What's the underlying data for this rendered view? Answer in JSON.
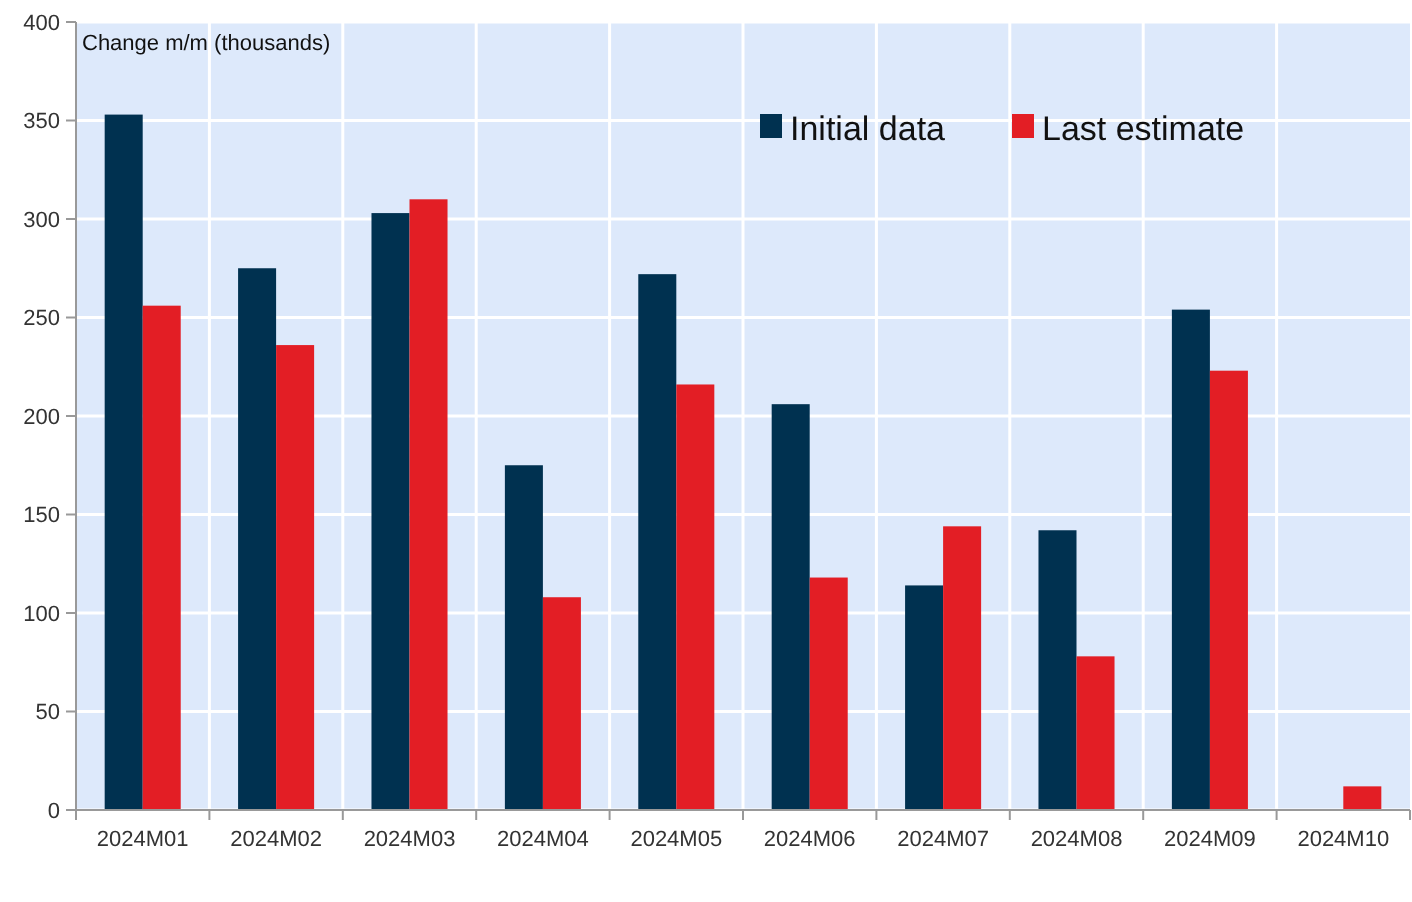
{
  "chart_data": {
    "type": "bar",
    "ylabel": "Change m/m (thousands)",
    "categories": [
      "2024M01",
      "2024M02",
      "2024M03",
      "2024M04",
      "2024M05",
      "2024M06",
      "2024M07",
      "2024M08",
      "2024M09",
      "2024M10"
    ],
    "series": [
      {
        "name": "Initial data",
        "color": "#003150",
        "values": [
          353,
          275,
          303,
          175,
          272,
          206,
          114,
          142,
          254,
          null
        ]
      },
      {
        "name": "Last estimate",
        "color": "#e31e25",
        "values": [
          256,
          236,
          310,
          108,
          216,
          118,
          144,
          78,
          223,
          12
        ]
      }
    ],
    "ylim": [
      0,
      400
    ],
    "yticks": [
      0,
      50,
      100,
      150,
      200,
      250,
      300,
      350,
      400
    ],
    "grid": true,
    "legend": "top right"
  }
}
